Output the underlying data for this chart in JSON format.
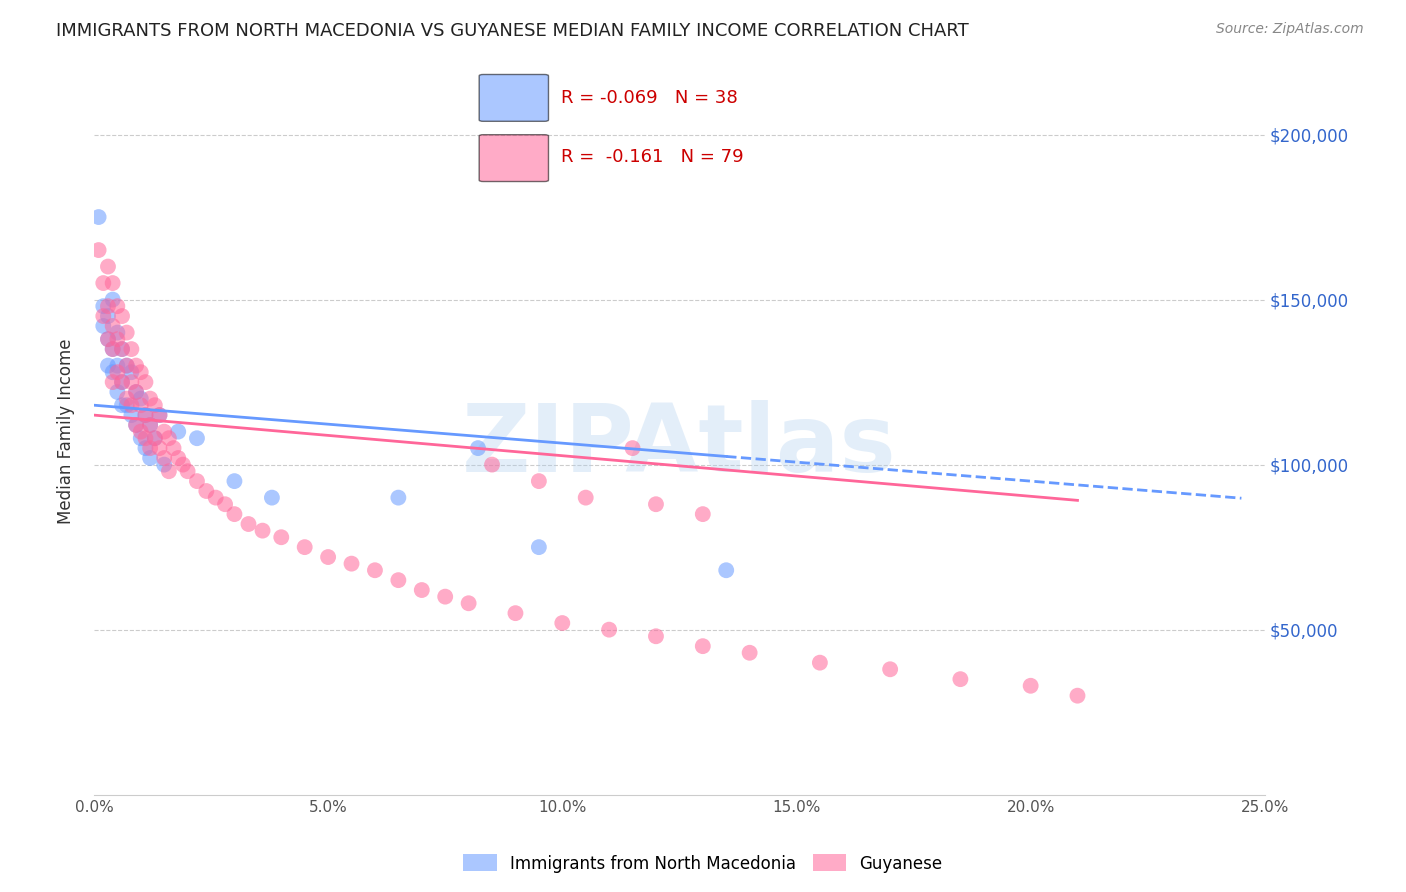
{
  "title": "IMMIGRANTS FROM NORTH MACEDONIA VS GUYANESE MEDIAN FAMILY INCOME CORRELATION CHART",
  "source": "Source: ZipAtlas.com",
  "ylabel": "Median Family Income",
  "xlim": [
    0.0,
    0.25
  ],
  "ylim": [
    0,
    220000
  ],
  "blue_R": -0.069,
  "blue_N": 38,
  "pink_R": -0.161,
  "pink_N": 79,
  "blue_color": "#6699ff",
  "pink_color": "#ff6699",
  "blue_label": "Immigrants from North Macedonia",
  "pink_label": "Guyanese",
  "watermark": "ZIPAtlas",
  "blue_scatter_x": [
    0.001,
    0.002,
    0.002,
    0.003,
    0.003,
    0.003,
    0.004,
    0.004,
    0.004,
    0.005,
    0.005,
    0.005,
    0.006,
    0.006,
    0.006,
    0.007,
    0.007,
    0.008,
    0.008,
    0.009,
    0.009,
    0.01,
    0.01,
    0.011,
    0.011,
    0.012,
    0.012,
    0.013,
    0.014,
    0.015,
    0.018,
    0.022,
    0.03,
    0.038,
    0.065,
    0.082,
    0.095,
    0.135
  ],
  "blue_scatter_y": [
    175000,
    148000,
    142000,
    145000,
    138000,
    130000,
    150000,
    135000,
    128000,
    140000,
    130000,
    122000,
    135000,
    125000,
    118000,
    130000,
    118000,
    128000,
    115000,
    122000,
    112000,
    120000,
    108000,
    115000,
    105000,
    112000,
    102000,
    108000,
    115000,
    100000,
    110000,
    108000,
    95000,
    90000,
    90000,
    105000,
    75000,
    68000
  ],
  "pink_scatter_x": [
    0.001,
    0.002,
    0.002,
    0.003,
    0.003,
    0.003,
    0.004,
    0.004,
    0.004,
    0.004,
    0.005,
    0.005,
    0.005,
    0.006,
    0.006,
    0.006,
    0.007,
    0.007,
    0.007,
    0.008,
    0.008,
    0.008,
    0.009,
    0.009,
    0.009,
    0.01,
    0.01,
    0.01,
    0.011,
    0.011,
    0.011,
    0.012,
    0.012,
    0.012,
    0.013,
    0.013,
    0.014,
    0.014,
    0.015,
    0.015,
    0.016,
    0.016,
    0.017,
    0.018,
    0.019,
    0.02,
    0.022,
    0.024,
    0.026,
    0.028,
    0.03,
    0.033,
    0.036,
    0.04,
    0.045,
    0.05,
    0.055,
    0.06,
    0.065,
    0.07,
    0.075,
    0.08,
    0.09,
    0.1,
    0.11,
    0.12,
    0.13,
    0.14,
    0.155,
    0.17,
    0.185,
    0.2,
    0.21,
    0.12,
    0.13,
    0.105,
    0.095,
    0.085,
    0.115
  ],
  "pink_scatter_y": [
    165000,
    155000,
    145000,
    160000,
    148000,
    138000,
    155000,
    142000,
    135000,
    125000,
    148000,
    138000,
    128000,
    145000,
    135000,
    125000,
    140000,
    130000,
    120000,
    135000,
    125000,
    118000,
    130000,
    122000,
    112000,
    128000,
    118000,
    110000,
    125000,
    115000,
    108000,
    120000,
    112000,
    105000,
    118000,
    108000,
    115000,
    105000,
    110000,
    102000,
    108000,
    98000,
    105000,
    102000,
    100000,
    98000,
    95000,
    92000,
    90000,
    88000,
    85000,
    82000,
    80000,
    78000,
    75000,
    72000,
    70000,
    68000,
    65000,
    62000,
    60000,
    58000,
    55000,
    52000,
    50000,
    48000,
    45000,
    43000,
    40000,
    38000,
    35000,
    33000,
    30000,
    88000,
    85000,
    90000,
    95000,
    100000,
    105000
  ]
}
